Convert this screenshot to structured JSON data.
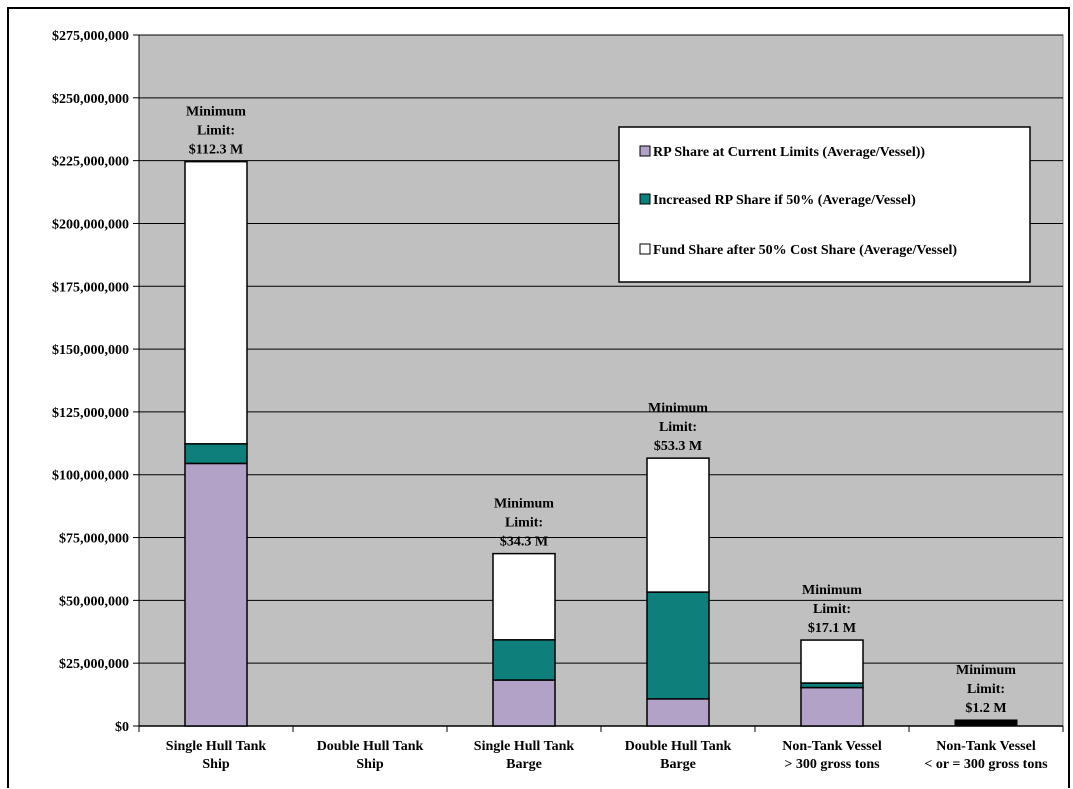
{
  "colors": {
    "plot_bg": "#c0c0c0",
    "rp_current": "#b3a2c7",
    "rp_increase": "#0e7f7a",
    "fund_share": "#ffffff",
    "small_vessel_bar": "#000000"
  },
  "chart_data": {
    "type": "bar",
    "stacked": true,
    "categories": [
      [
        "Single Hull Tank",
        "Ship"
      ],
      [
        "Double Hull Tank",
        "Ship"
      ],
      [
        "Single Hull Tank",
        "Barge"
      ],
      [
        "Double Hull Tank",
        "Barge"
      ],
      [
        "Non-Tank Vessel",
        "> 300 gross tons"
      ],
      [
        "Non-Tank Vessel",
        "< or = 300 gross tons"
      ]
    ],
    "series": [
      {
        "name": "RP Share at Current Limits (Average/Vessel))",
        "color": "#b3a2c7",
        "values": [
          104500000,
          0,
          18300000,
          10800000,
          15300000,
          1200000
        ]
      },
      {
        "name": "Increased RP Share if 50% (Average/Vessel)",
        "color": "#0e7f7a",
        "values": [
          7800000,
          0,
          16000000,
          42500000,
          1800000,
          0
        ]
      },
      {
        "name": "Fund Share after 50% Cost Share (Average/Vessel)",
        "color": "#ffffff",
        "values": [
          112300000,
          0,
          34300000,
          53300000,
          17100000,
          1200000
        ]
      }
    ],
    "annotations": [
      [
        "Minimum",
        "Limit:",
        "$112.3 M"
      ],
      null,
      [
        "Minimum",
        "Limit:",
        "$34.3 M"
      ],
      [
        "Minimum",
        "Limit:",
        "$53.3 M"
      ],
      [
        "Minimum",
        "Limit:",
        "$17.1 M"
      ],
      [
        "Minimum",
        "Limit:",
        "$1.2 M"
      ]
    ],
    "ylim": [
      0,
      275000000
    ],
    "yticks": [
      0,
      25000000,
      50000000,
      75000000,
      100000000,
      125000000,
      150000000,
      175000000,
      200000000,
      225000000,
      250000000,
      275000000
    ],
    "ytick_labels": [
      "$0",
      "$25,000,000",
      "$50,000,000",
      "$75,000,000",
      "$100,000,000",
      "$125,000,000",
      "$150,000,000",
      "$175,000,000",
      "$200,000,000",
      "$225,000,000",
      "$250,000,000",
      "$275,000,000"
    ],
    "title": "",
    "xlabel": "",
    "ylabel": "",
    "grid": true,
    "legend_position": "top-right"
  }
}
